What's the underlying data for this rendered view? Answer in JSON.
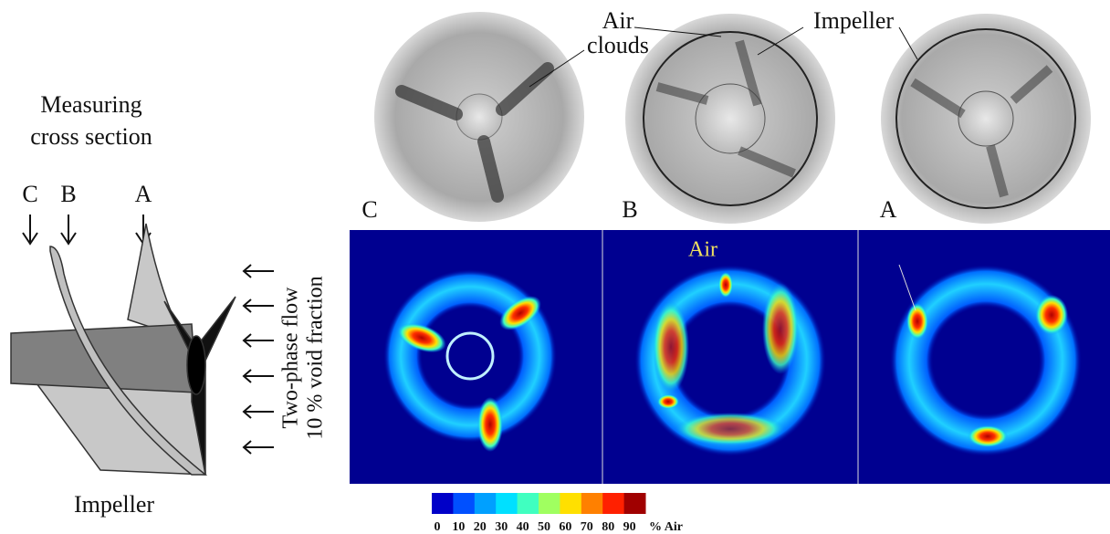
{
  "schematic": {
    "caption_lines": [
      "Measuring",
      "cross section"
    ],
    "section_labels": [
      "C",
      "B",
      "A"
    ],
    "flow_label_lines": [
      "Two-phase flow",
      "10 % void fraction"
    ],
    "part_label": "Impeller"
  },
  "tomograms": {
    "air_clouds_lines": [
      "Air",
      "clouds"
    ],
    "impeller_label": "Impeller",
    "panel_labels": [
      "C",
      "B",
      "A"
    ]
  },
  "void_maps": {
    "annotation": "Air",
    "colorbar": {
      "ticks": [
        0,
        10,
        20,
        30,
        40,
        50,
        60,
        70,
        80,
        90
      ],
      "unit": "% Air",
      "colors": [
        "#0000c8",
        "#0050ff",
        "#00a0ff",
        "#00e0ff",
        "#40ffc0",
        "#a0ff60",
        "#ffe000",
        "#ff8000",
        "#ff2000",
        "#a00000"
      ]
    }
  }
}
